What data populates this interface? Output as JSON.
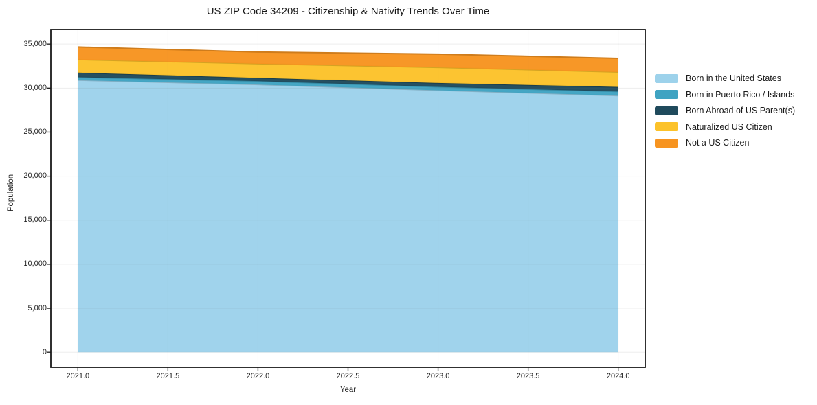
{
  "chart_data": {
    "type": "area",
    "stacked": true,
    "title": "US ZIP Code 34209 - Citizenship & Nativity Trends Over Time",
    "xlabel": "Year",
    "ylabel": "Population",
    "x": [
      2021,
      2022,
      2023,
      2024
    ],
    "series": [
      {
        "name": "Born in the United States",
        "color": "#9DD2EB",
        "values": [
          30900,
          30400,
          29750,
          29150
        ]
      },
      {
        "name": "Born in Puerto Rico / Islands",
        "color": "#3FA3C2",
        "values": [
          340,
          390,
          390,
          465
        ]
      },
      {
        "name": "Born Abroad of US Parent(s)",
        "color": "#1F4A5C",
        "values": [
          515,
          375,
          440,
          515
        ]
      },
      {
        "name": "Naturalized US Citizen",
        "color": "#FCC22A",
        "values": [
          1480,
          1600,
          1770,
          1690
        ]
      },
      {
        "name": "Not a US Citizen",
        "color": "#F79420",
        "values": [
          1435,
          1325,
          1505,
          1560
        ]
      }
    ],
    "xlim": [
      2020.85,
      2024.15
    ],
    "ylim": [
      -1700,
      36650
    ],
    "xticks": [
      2021.0,
      2021.5,
      2022.0,
      2022.5,
      2023.0,
      2023.5,
      2024.0
    ],
    "xtick_labels": [
      "2021.0",
      "2021.5",
      "2022.0",
      "2022.5",
      "2023.0",
      "2023.5",
      "2024.0"
    ],
    "yticks": [
      0,
      5000,
      10000,
      15000,
      20000,
      25000,
      30000,
      35000
    ],
    "ytick_labels": [
      "0",
      "5,000",
      "10,000",
      "15,000",
      "20,000",
      "25,000",
      "30,000",
      "35,000"
    ],
    "grid": true,
    "legend_position": "right outside, vertical"
  }
}
